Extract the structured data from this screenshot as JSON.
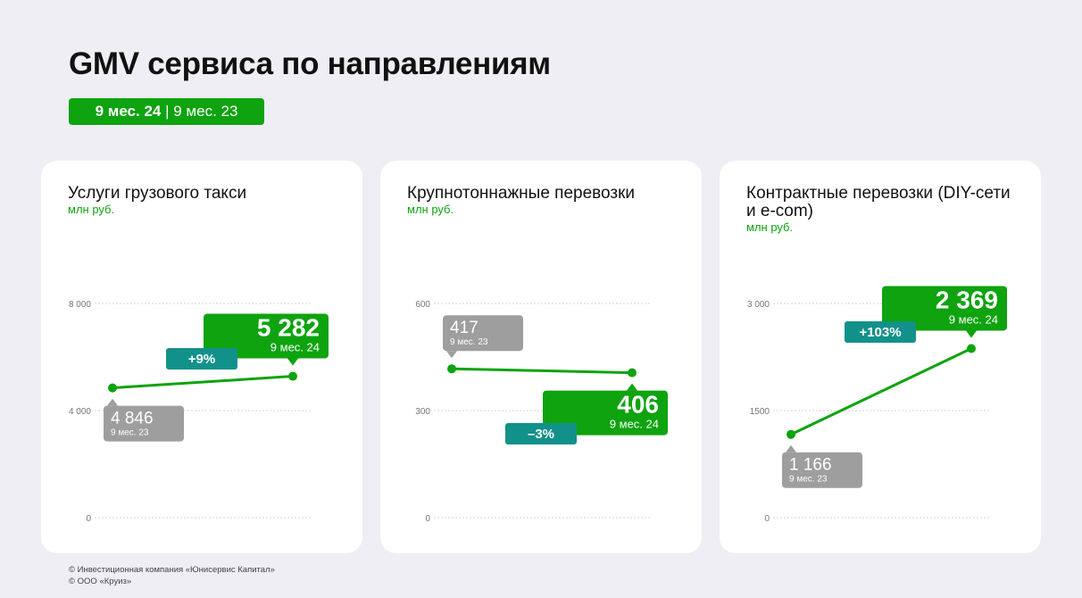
{
  "page": {
    "title": "GMV сервиса по направлениям",
    "period_toggle": {
      "active": "9 мес. 24",
      "separator": "|",
      "inactive": "9 мес. 23"
    }
  },
  "colors": {
    "green": "#0ea30f",
    "teal": "#12918a",
    "gray": "#9e9e9e",
    "background": "#eeeef4"
  },
  "footer": {
    "line1": "© Инвестиционная компания «Юнисервис Капитал»",
    "line2": "© ООО «Круиз»"
  },
  "chart_data": [
    {
      "type": "line",
      "title": "Услуги грузового такси",
      "unit": "млн руб.",
      "ylim": [
        0,
        8000
      ],
      "yticks": [
        0,
        4000,
        8000
      ],
      "ytick_labels": [
        "0",
        "4 000",
        "8 000"
      ],
      "grid": true,
      "points": [
        {
          "period": "9 мес. 23",
          "value": 4846,
          "label": "4 846"
        },
        {
          "period": "9 мес. 24",
          "value": 5282,
          "label": "5 282"
        }
      ],
      "change": "+9%"
    },
    {
      "type": "line",
      "title": "Крупнотоннажные перевозки",
      "unit": "млн руб.",
      "ylim": [
        0,
        600
      ],
      "yticks": [
        0,
        300,
        600
      ],
      "ytick_labels": [
        "0",
        "300",
        "600"
      ],
      "grid": true,
      "points": [
        {
          "period": "9 мес. 23",
          "value": 417,
          "label": "417"
        },
        {
          "period": "9 мес. 24",
          "value": 406,
          "label": "406"
        }
      ],
      "change": "–3%"
    },
    {
      "type": "line",
      "title": "Контрактные перевозки (DIY-сети и e-com)",
      "unit": "млн руб.",
      "ylim": [
        0,
        3000
      ],
      "yticks": [
        0,
        1500,
        3000
      ],
      "ytick_labels": [
        "0",
        "1500",
        "3 000"
      ],
      "grid": true,
      "points": [
        {
          "period": "9 мес. 23",
          "value": 1166,
          "label": "1 166"
        },
        {
          "period": "9 мес. 24",
          "value": 2369,
          "label": "2 369"
        }
      ],
      "change": "+103%"
    }
  ]
}
